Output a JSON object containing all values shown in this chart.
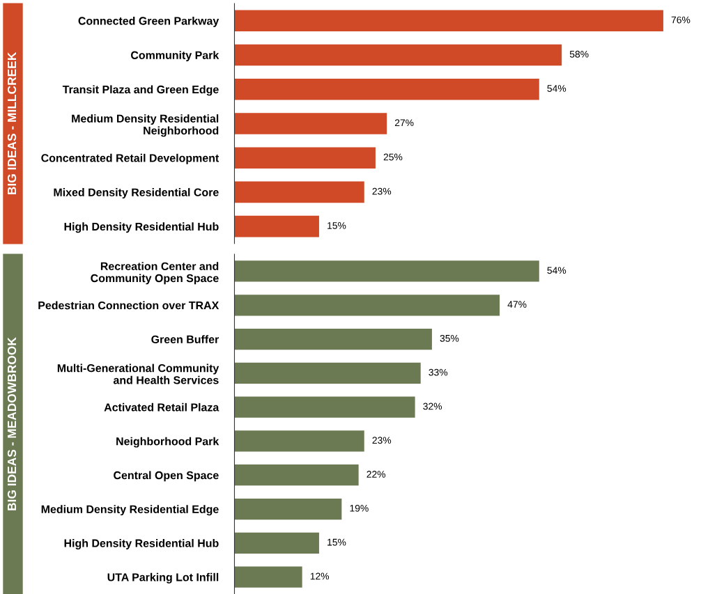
{
  "chart_data": [
    {
      "type": "bar",
      "orientation": "horizontal",
      "ylabel": "BIG IDEAS - MILLCREEK",
      "categories": [
        "Connected Green Parkway",
        "Community Park",
        "Transit Plaza and Green Edge",
        "Medium Density Residential\nNeighborhood",
        "Concentrated Retail Development",
        "Mixed Density Residential Core",
        "High Density Residential Hub"
      ],
      "series": [
        {
          "color": "#d04a27",
          "values": [
            76,
            58,
            54,
            27,
            25,
            23,
            15
          ],
          "value_labels": [
            "76%",
            "58%",
            "54%",
            "27%",
            "25%",
            "23%",
            "15%"
          ]
        }
      ],
      "tick_labels": "y",
      "grid": false,
      "legend": false
    },
    {
      "type": "bar",
      "orientation": "horizontal",
      "ylabel": "BIG IDEAS - MEADOWBROOK",
      "categories": [
        "Recreation Center and\nCommunity Open Space",
        "Pedestrian Connection over TRAX",
        "Green Buffer",
        "Multi-Generational Community\nand Health Services",
        "Activated Retail Plaza",
        "Neighborhood Park",
        "Central Open Space",
        "Medium Density Residential Edge",
        "High Density Residential Hub",
        "UTA Parking Lot Infill"
      ],
      "series": [
        {
          "color": "#6b7a52",
          "values": [
            54,
            47,
            35,
            33,
            32,
            23,
            22,
            19,
            15,
            12
          ],
          "value_labels": [
            "54%",
            "47%",
            "35%",
            "33%",
            "32%",
            "23%",
            "22%",
            "19%",
            "15%",
            "12%"
          ]
        }
      ],
      "tick_labels": "y",
      "grid": false,
      "legend": false
    }
  ]
}
